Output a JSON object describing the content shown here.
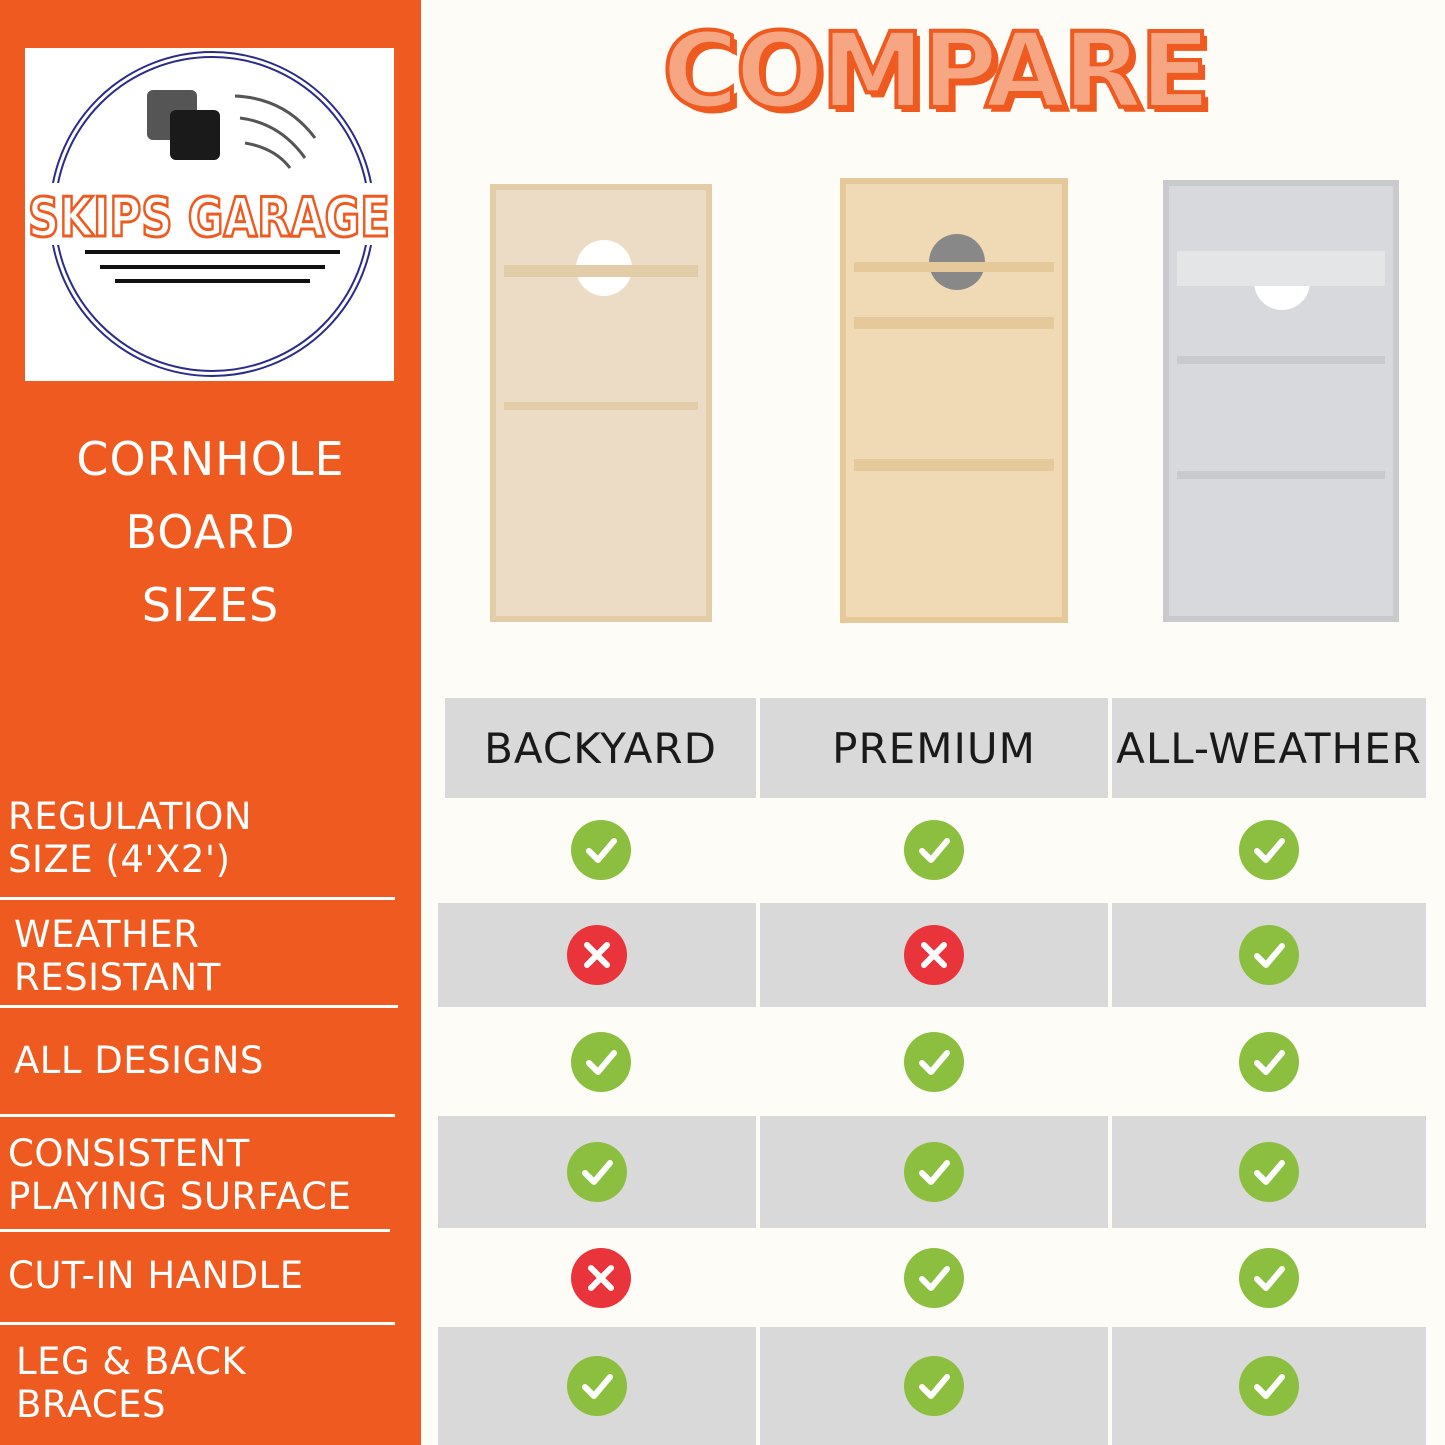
{
  "brand": {
    "logo_text": "SKIPS GARAGE"
  },
  "left": {
    "subtitle": [
      "CORNHOLE",
      "BOARD",
      "SIZES"
    ]
  },
  "title": "COMPARE",
  "colors": {
    "orange": "#ee5a1f",
    "check": "#8cbf3f",
    "cross": "#e8343a",
    "row_gray": "#d9d9d9"
  },
  "columns": [
    "BACKYARD",
    "PREMIUM",
    "ALL-WEATHER"
  ],
  "rows": [
    {
      "label": [
        "REGULATION",
        "SIZE (4'X2')"
      ],
      "values": [
        "check",
        "check",
        "check"
      ]
    },
    {
      "label": [
        "WEATHER",
        "RESISTANT"
      ],
      "values": [
        "cross",
        "cross",
        "check"
      ]
    },
    {
      "label": [
        "ALL DESIGNS"
      ],
      "values": [
        "check",
        "check",
        "check"
      ]
    },
    {
      "label": [
        "CONSISTENT",
        "PLAYING SURFACE"
      ],
      "values": [
        "check",
        "check",
        "check"
      ]
    },
    {
      "label": [
        "CUT-IN HANDLE"
      ],
      "values": [
        "cross",
        "check",
        "check"
      ]
    },
    {
      "label": [
        "LEG & BACK",
        "BRACES"
      ],
      "values": [
        "check",
        "check",
        "check"
      ]
    }
  ]
}
